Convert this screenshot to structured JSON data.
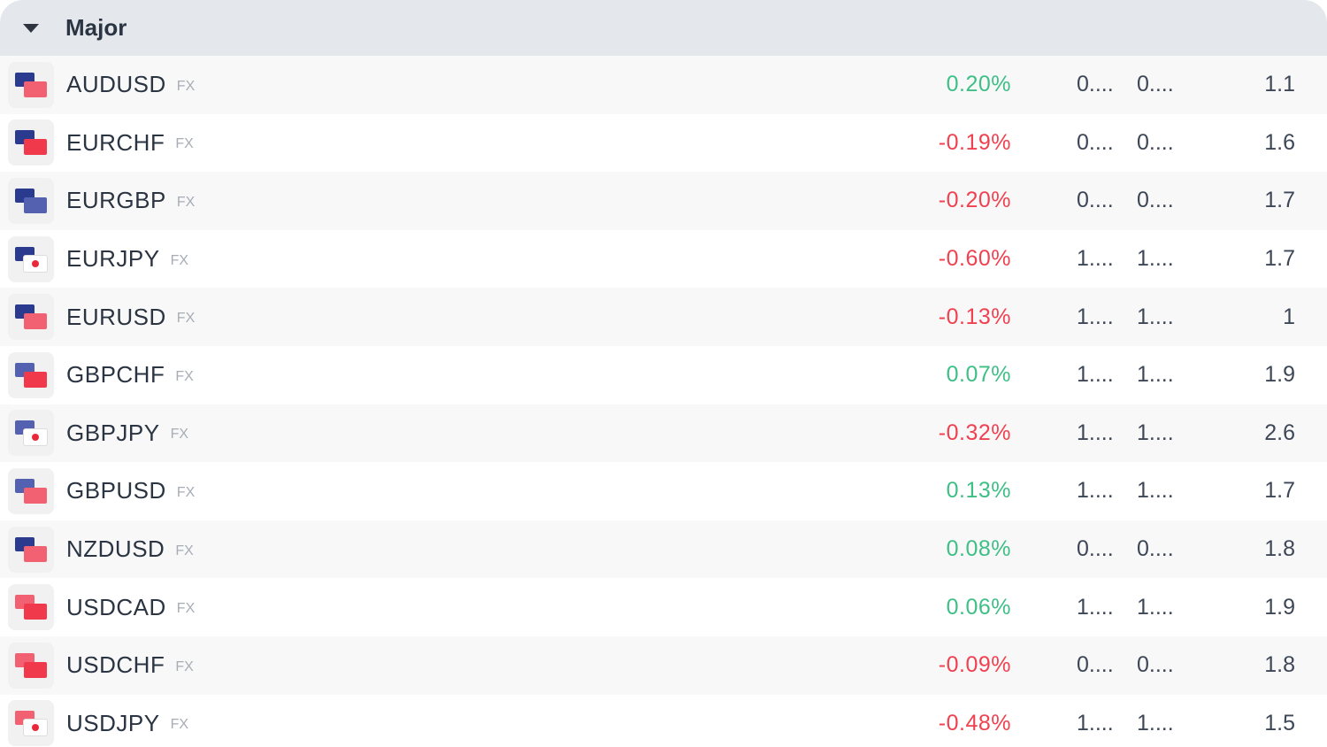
{
  "group": {
    "title": "Major",
    "expanded": true
  },
  "colors": {
    "positive": "#3ebf86",
    "negative": "#ef4150"
  },
  "rows": [
    {
      "symbol": "AUDUSD",
      "tag": "FX",
      "change": "0.20%",
      "dir": "pos",
      "bid": "0....",
      "ask": "0....",
      "spread": "1.1",
      "flag1": "#2a3a8f",
      "flag2": "#f16171"
    },
    {
      "symbol": "EURCHF",
      "tag": "FX",
      "change": "-0.19%",
      "dir": "neg",
      "bid": "0....",
      "ask": "0....",
      "spread": "1.6",
      "flag1": "#2a3a8f",
      "flag2": "#f0394a"
    },
    {
      "symbol": "EURGBP",
      "tag": "FX",
      "change": "-0.20%",
      "dir": "neg",
      "bid": "0....",
      "ask": "0....",
      "spread": "1.7",
      "flag1": "#2a3a8f",
      "flag2": "#5361b0"
    },
    {
      "symbol": "EURJPY",
      "tag": "FX",
      "change": "-0.60%",
      "dir": "neg",
      "bid": "1....",
      "ask": "1....",
      "spread": "1.7",
      "flag1": "#2a3a8f",
      "flag2": "#ffffff"
    },
    {
      "symbol": "EURUSD",
      "tag": "FX",
      "change": "-0.13%",
      "dir": "neg",
      "bid": "1....",
      "ask": "1....",
      "spread": "1",
      "flag1": "#2a3a8f",
      "flag2": "#f16171"
    },
    {
      "symbol": "GBPCHF",
      "tag": "FX",
      "change": "0.07%",
      "dir": "pos",
      "bid": "1....",
      "ask": "1....",
      "spread": "1.9",
      "flag1": "#5361b0",
      "flag2": "#f0394a"
    },
    {
      "symbol": "GBPJPY",
      "tag": "FX",
      "change": "-0.32%",
      "dir": "neg",
      "bid": "1....",
      "ask": "1....",
      "spread": "2.6",
      "flag1": "#5361b0",
      "flag2": "#ffffff"
    },
    {
      "symbol": "GBPUSD",
      "tag": "FX",
      "change": "0.13%",
      "dir": "pos",
      "bid": "1....",
      "ask": "1....",
      "spread": "1.7",
      "flag1": "#5361b0",
      "flag2": "#f16171"
    },
    {
      "symbol": "NZDUSD",
      "tag": "FX",
      "change": "0.08%",
      "dir": "pos",
      "bid": "0....",
      "ask": "0....",
      "spread": "1.8",
      "flag1": "#2a3a8f",
      "flag2": "#f16171"
    },
    {
      "symbol": "USDCAD",
      "tag": "FX",
      "change": "0.06%",
      "dir": "pos",
      "bid": "1....",
      "ask": "1....",
      "spread": "1.9",
      "flag1": "#f16171",
      "flag2": "#f0394a"
    },
    {
      "symbol": "USDCHF",
      "tag": "FX",
      "change": "-0.09%",
      "dir": "neg",
      "bid": "0....",
      "ask": "0....",
      "spread": "1.8",
      "flag1": "#f16171",
      "flag2": "#f0394a"
    },
    {
      "symbol": "USDJPY",
      "tag": "FX",
      "change": "-0.48%",
      "dir": "neg",
      "bid": "1....",
      "ask": "1....",
      "spread": "1.5",
      "flag1": "#f16171",
      "flag2": "#ffffff"
    }
  ]
}
